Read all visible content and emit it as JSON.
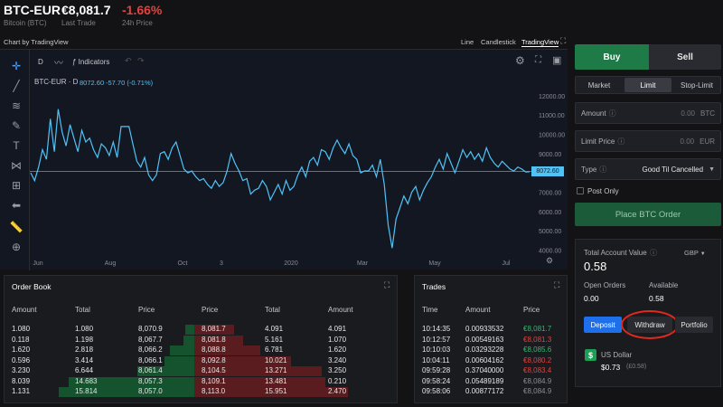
{
  "header": {
    "pair": "BTC-EUR",
    "pair_sub": "Bitcoin (BTC)",
    "last_trade": "€8,081.7",
    "last_trade_label": "Last Trade",
    "change": "-1.66%",
    "change_label": "24h Price"
  },
  "chart_header": {
    "credit": "Chart by TradingView",
    "modes": [
      "Line",
      "Candlestick",
      "TradingView"
    ]
  },
  "chart_toolbar": {
    "interval": "D",
    "indicators": "Indicators"
  },
  "chart": {
    "symbol": "BTC-EUR · D",
    "price": "8072.60",
    "delta": "-57.70 (-0.71%)",
    "tag": "8072.60",
    "y_ticks": [
      "12000.00",
      "11000.00",
      "10000.00",
      "9000.00",
      "8000.00",
      "7000.00",
      "6000.00",
      "5000.00",
      "4000.00"
    ],
    "x_ticks": [
      "Jun",
      "Aug",
      "Oct",
      "3",
      "2020",
      "Mar",
      "May",
      "Jul"
    ]
  },
  "chart_data": {
    "type": "line",
    "title": "BTC-EUR · D",
    "ylim": [
      3600,
      12600
    ],
    "last": 8072.6,
    "values": [
      8000,
      7600,
      8300,
      9200,
      8700,
      10800,
      9100,
      11300,
      10100,
      9400,
      10500,
      9800,
      9100,
      10200,
      9600,
      9800,
      9200,
      8800,
      9500,
      9300,
      8900,
      9600,
      8800,
      10400,
      10400,
      10400,
      9500,
      8600,
      8300,
      8800,
      7900,
      7600,
      7900,
      9000,
      9100,
      8700,
      9300,
      9600,
      8900,
      8200,
      8000,
      8100,
      7800,
      7600,
      7700,
      7400,
      7200,
      7600,
      7300,
      7500,
      8100,
      9000,
      8500,
      8100,
      7600,
      7700,
      6900,
      7100,
      7200,
      7600,
      7300,
      6600,
      7000,
      7400,
      6900,
      7600,
      7100,
      7300,
      7900,
      8300,
      7800,
      8600,
      8800,
      8400,
      9200,
      9100,
      8700,
      9300,
      9700,
      9300,
      9000,
      9500,
      8900,
      8700,
      8000,
      8100,
      8100,
      8400,
      7800,
      8700,
      7400,
      5300,
      4100,
      5600,
      6200,
      6800,
      6400,
      7000,
      7300,
      6600,
      7100,
      7500,
      7800,
      8300,
      8700,
      8200,
      9000,
      8500,
      8000,
      8600,
      9200,
      8800,
      9100,
      8700,
      9000,
      8600,
      9300,
      8800,
      8500,
      8300,
      8600,
      8400,
      8200,
      8100,
      8300,
      8200,
      8050,
      8060
    ]
  },
  "order_book": {
    "title": "Order Book",
    "headers": [
      "Amount",
      "Total",
      "Price",
      "Price",
      "Total",
      "Amount"
    ],
    "bids": [
      [
        "1.080",
        "1.080",
        "8,070.9"
      ],
      [
        "0.118",
        "1.198",
        "8,067.7"
      ],
      [
        "1.620",
        "2.818",
        "8,066.2"
      ],
      [
        "0.596",
        "3.414",
        "8,066.1"
      ],
      [
        "3.230",
        "6.644",
        "8,061.4"
      ],
      [
        "8.039",
        "14.683",
        "8,057.3"
      ],
      [
        "1.131",
        "15.814",
        "8,057.0"
      ]
    ],
    "asks": [
      [
        "8,081.7",
        "4.091",
        "4.091"
      ],
      [
        "8,081.8",
        "5.161",
        "1.070"
      ],
      [
        "8,088.8",
        "6.781",
        "1.620"
      ],
      [
        "8,092.8",
        "10.021",
        "3.240"
      ],
      [
        "8,104.5",
        "13.271",
        "3.250"
      ],
      [
        "8,109.1",
        "13.481",
        "0.210"
      ],
      [
        "8,113.0",
        "15.951",
        "2.470"
      ]
    ],
    "bid_depth": [
      0.07,
      0.08,
      0.18,
      0.22,
      0.42,
      0.93,
      1.0
    ],
    "ask_depth": [
      0.26,
      0.32,
      0.43,
      0.63,
      0.83,
      0.85,
      1.0
    ]
  },
  "trades": {
    "title": "Trades",
    "headers": [
      "Time",
      "Amount",
      "Price"
    ],
    "rows": [
      [
        "10:14:35",
        "0.00933532",
        "€8,081.7",
        "up"
      ],
      [
        "10:12:57",
        "0.00549163",
        "€8,081.3",
        "down"
      ],
      [
        "10:10:03",
        "0.03293228",
        "€8,085.6",
        "up"
      ],
      [
        "10:04:11",
        "0.00604162",
        "€8,080.2",
        "down"
      ],
      [
        "09:59:28",
        "0.37040000",
        "€8,083.4",
        "down"
      ],
      [
        "09:58:24",
        "0.05489189",
        "€8,084.9",
        "flat"
      ],
      [
        "09:58:06",
        "0.00877172",
        "€8,084.9",
        "flat"
      ]
    ]
  },
  "order_form": {
    "buy": "Buy",
    "sell": "Sell",
    "types": [
      "Market",
      "Limit",
      "Stop-Limit"
    ],
    "amount_label": "Amount",
    "amount_value": "0.00",
    "amount_unit": "BTC",
    "limit_label": "Limit Price",
    "limit_value": "0.00",
    "limit_unit": "EUR",
    "type_label": "Type",
    "type_value": "Good Til Cancelled",
    "post_only": "Post Only",
    "place": "Place BTC Order"
  },
  "account": {
    "total_label": "Total Account Value",
    "currency": "GBP",
    "total": "0.58",
    "open_label": "Open Orders",
    "open": "0.00",
    "avail_label": "Available",
    "avail": "0.58",
    "deposit": "Deposit",
    "withdraw": "Withdraw",
    "portfolio": "Portfolio",
    "wallet_name": "US Dollar",
    "wallet_value": "$0.73",
    "wallet_conv": "(£0.58)"
  },
  "colors": {
    "accent_green": "#1e7a46",
    "line": "#4fc3f7",
    "down": "#e0433f",
    "up": "#3cb371"
  }
}
